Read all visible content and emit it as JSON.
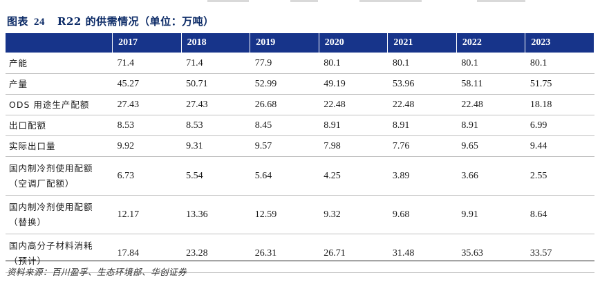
{
  "caption": {
    "figure_label": "图表",
    "figure_number": "24",
    "title": "R22 的供需情况（单位：万吨）"
  },
  "table": {
    "columns": [
      "2017",
      "2018",
      "2019",
      "2020",
      "2021",
      "2022",
      "2023"
    ],
    "rows": [
      {
        "label": [
          "产能"
        ],
        "values": [
          "71.4",
          "71.4",
          "77.9",
          "80.1",
          "80.1",
          "80.1",
          "80.1"
        ]
      },
      {
        "label": [
          "产量"
        ],
        "values": [
          "45.27",
          "50.71",
          "52.99",
          "49.19",
          "53.96",
          "58.11",
          "51.75"
        ]
      },
      {
        "label": [
          "ODS 用途生产配额"
        ],
        "values": [
          "27.43",
          "27.43",
          "26.68",
          "22.48",
          "22.48",
          "22.48",
          "18.18"
        ]
      },
      {
        "label": [
          "出口配额"
        ],
        "values": [
          "8.53",
          "8.53",
          "8.45",
          "8.91",
          "8.91",
          "8.91",
          "6.99"
        ]
      },
      {
        "label": [
          "实际出口量"
        ],
        "values": [
          "9.92",
          "9.31",
          "9.57",
          "7.98",
          "7.76",
          "9.65",
          "9.44"
        ]
      },
      {
        "label": [
          "国内制冷剂使用配额",
          "（空调厂配额）"
        ],
        "values": [
          "6.73",
          "5.54",
          "5.64",
          "4.25",
          "3.89",
          "3.66",
          "2.55"
        ]
      },
      {
        "label": [
          "国内制冷剂使用配额",
          "（替换）"
        ],
        "values": [
          "12.17",
          "13.36",
          "12.59",
          "9.32",
          "9.68",
          "9.91",
          "8.64"
        ]
      },
      {
        "label": [
          "国内高分子材料消耗",
          "（预计）"
        ],
        "values": [
          "17.84",
          "23.28",
          "26.31",
          "26.71",
          "31.48",
          "35.63",
          "33.57"
        ]
      }
    ]
  },
  "source": "资料来源：百川盈孚、生态环境部、华创证券",
  "colors": {
    "header_bg": "#17348a",
    "header_text": "#ffffff",
    "caption_text": "#0b2a66"
  }
}
